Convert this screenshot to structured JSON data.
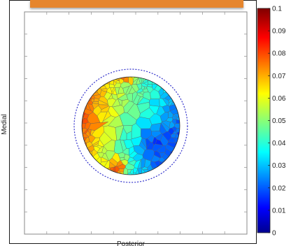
{
  "chart_data": {
    "type": "heatmap",
    "xlabel": "Posterior",
    "ylabel": "Medial",
    "colorbar": {
      "min": 0,
      "max": 0.1,
      "ticks": [
        "0",
        "0.01",
        "0.02",
        "0.03",
        "0.04",
        "0.05",
        "0.06",
        "0.07",
        "0.08",
        "0.09",
        "0.1"
      ],
      "colormap": "jet"
    },
    "field": {
      "shape": "circle",
      "boundary": "dashed blue circle",
      "cells": "voronoi polygons",
      "hotspots": [
        {
          "location": "upper rim",
          "value": 0.09
        },
        {
          "location": "lower-left rim",
          "value": 0.08
        }
      ],
      "regions": [
        {
          "location": "left",
          "value": 0.05
        },
        {
          "location": "upper-middle",
          "value": 0.045
        },
        {
          "location": "right",
          "value": 0.02
        },
        {
          "location": "lower",
          "value": 0.025
        },
        {
          "location": "lower-right",
          "value": 0.01
        }
      ]
    }
  },
  "colors": {
    "frame": "#1a1a1a",
    "header_bar": "#e6862e",
    "boundary": "#3333cc"
  }
}
